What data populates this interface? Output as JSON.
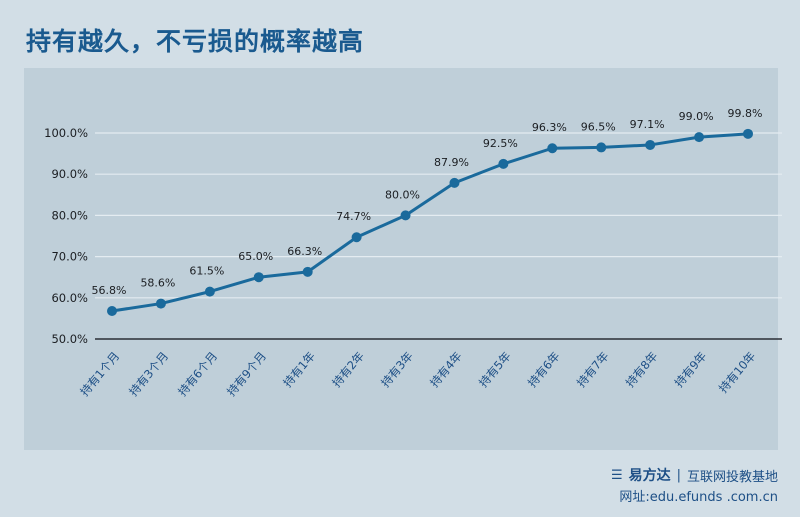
{
  "title": "持有越久，不亏损的概率越高",
  "footer": {
    "brand": "易方达",
    "divider": "|",
    "slogan": "互联网投教基地",
    "url": "网址:edu.efunds .com.cn"
  },
  "colors": {
    "line": "#1a6a9c",
    "title": "#1a5a8f",
    "plot_bg": "#bfcfd9",
    "page_bg": "#d2dee6"
  },
  "chart_data": {
    "type": "line",
    "title": "持有越久，不亏损的概率越高",
    "categories": [
      "持有1个月",
      "持有3个月",
      "持有6个月",
      "持有9个月",
      "持有1年",
      "持有2年",
      "持有3年",
      "持有4年",
      "持有5年",
      "持有6年",
      "持有7年",
      "持有8年",
      "持有9年",
      "持有10年"
    ],
    "values": [
      56.8,
      58.6,
      61.5,
      65.0,
      66.3,
      74.7,
      80.0,
      87.9,
      92.5,
      96.3,
      96.5,
      97.1,
      99.0,
      99.8
    ],
    "data_labels": [
      "56.8%",
      "58.6%",
      "61.5%",
      "65.0%",
      "66.3%",
      "74.7%",
      "80.0%",
      "87.9%",
      "92.5%",
      "96.3%",
      "96.5%",
      "97.1%",
      "99.0%",
      "99.8%"
    ],
    "yticks": [
      "50.0%",
      "60.0%",
      "70.0%",
      "80.0%",
      "90.0%",
      "100.0%"
    ],
    "ylim": [
      50,
      100
    ],
    "grid": true,
    "legend": "none"
  }
}
